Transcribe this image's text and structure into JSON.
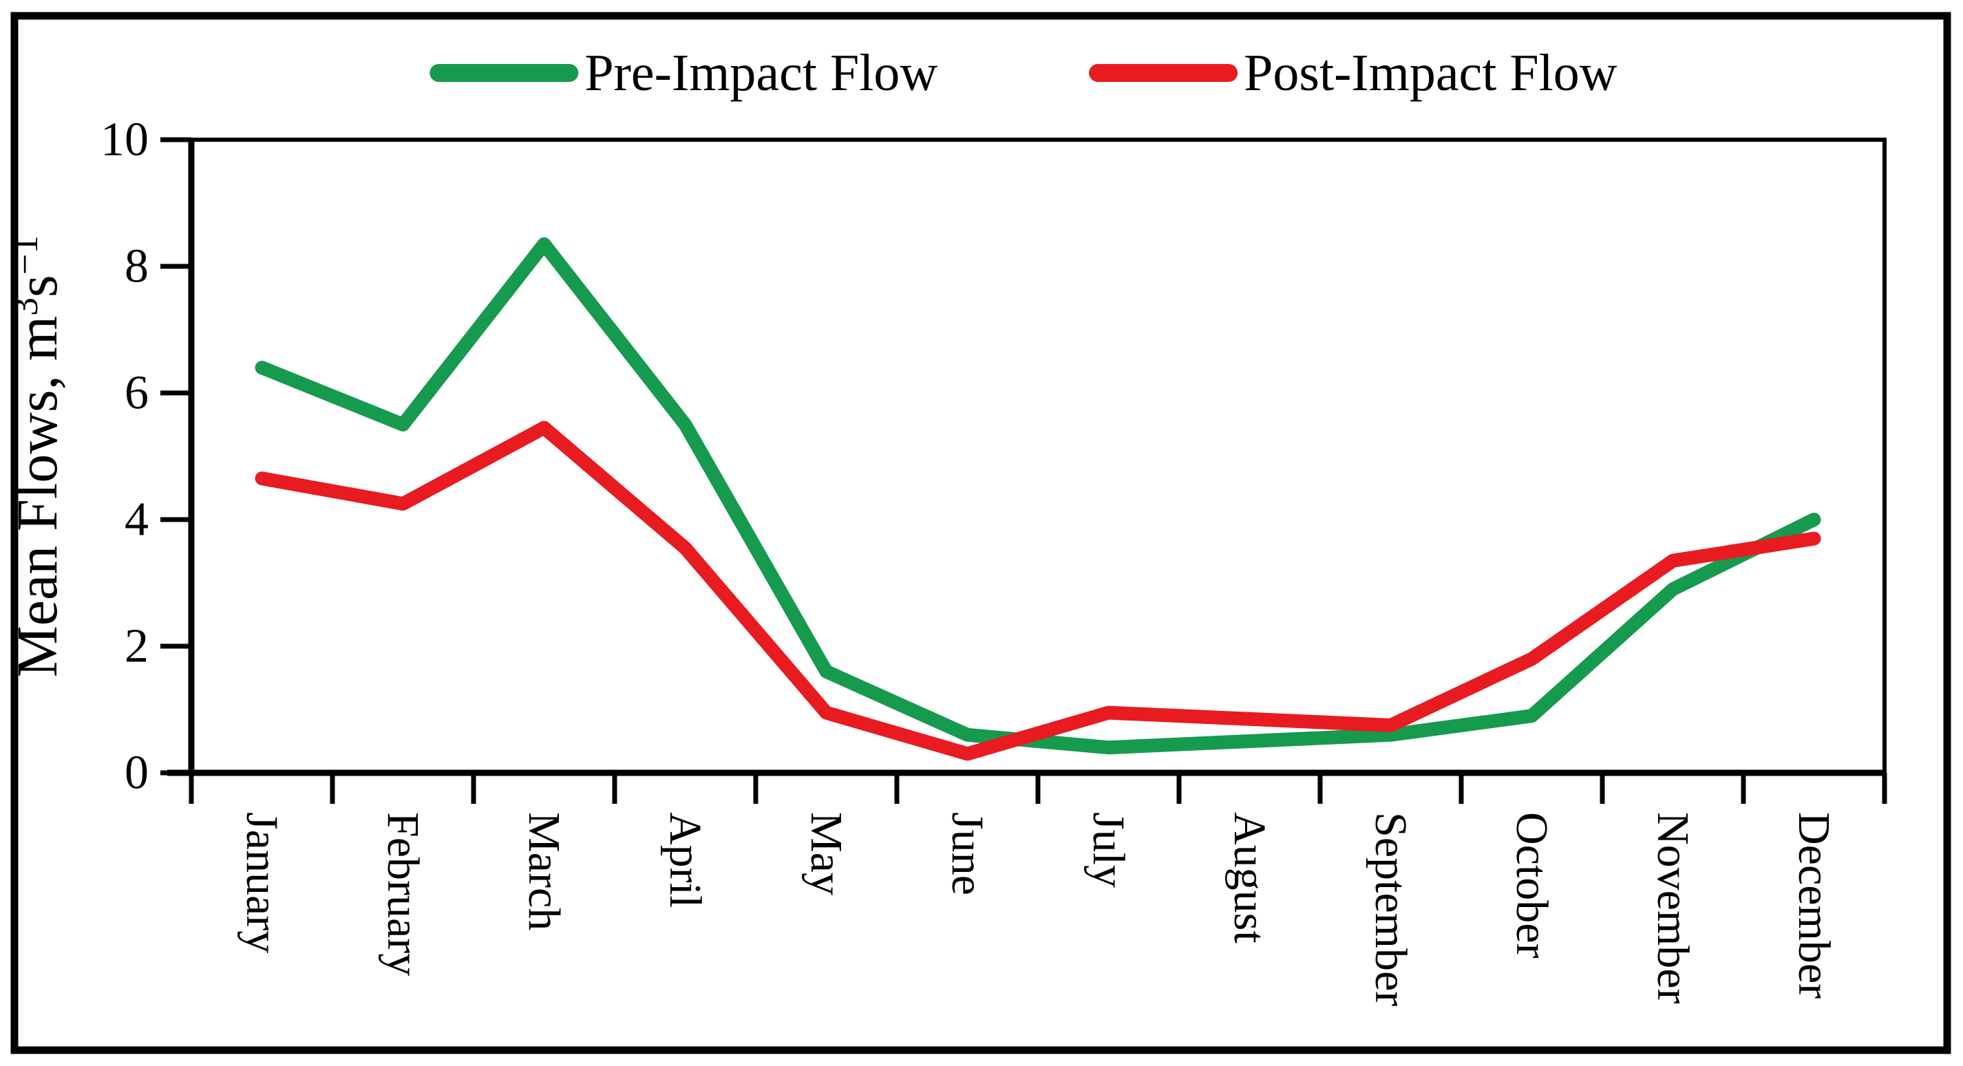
{
  "figure": {
    "background": "#ffffff",
    "border_color": "#000000",
    "axis_color": "#000000",
    "text_color": "#000000"
  },
  "chart_data": {
    "type": "line",
    "title": "",
    "categories": [
      "January",
      "February",
      "March",
      "April",
      "May",
      "June",
      "July",
      "August",
      "September",
      "October",
      "November",
      "December"
    ],
    "series": [
      {
        "name": "Pre-Impact Flow",
        "color": "#169a4e",
        "values": [
          6.4,
          5.5,
          8.35,
          5.5,
          1.6,
          0.6,
          0.4,
          0.5,
          0.6,
          0.9,
          2.9,
          4.0
        ]
      },
      {
        "name": "Post-Impact Flow",
        "color": "#e81b20",
        "values": [
          4.65,
          4.25,
          5.45,
          3.55,
          0.95,
          0.3,
          0.95,
          0.85,
          0.75,
          1.8,
          3.35,
          3.7
        ]
      }
    ],
    "xlabel": "",
    "ylabel": "Mean Flows, m³s⁻¹",
    "ylabel_parts": [
      {
        "t": "Mean Flows, m",
        "sup": false
      },
      {
        "t": "3",
        "sup": true
      },
      {
        "t": "s",
        "sup": false
      },
      {
        "t": "−1",
        "sup": true
      }
    ],
    "ylim": [
      0,
      10
    ],
    "ytick_step": 2,
    "ytick_labels": [
      "0",
      "2",
      "4",
      "6",
      "8",
      "10"
    ],
    "grid": false,
    "legend_position": "top",
    "x_axis_tick_style": "category-boundaries",
    "x_label_rotation_deg": 90
  }
}
